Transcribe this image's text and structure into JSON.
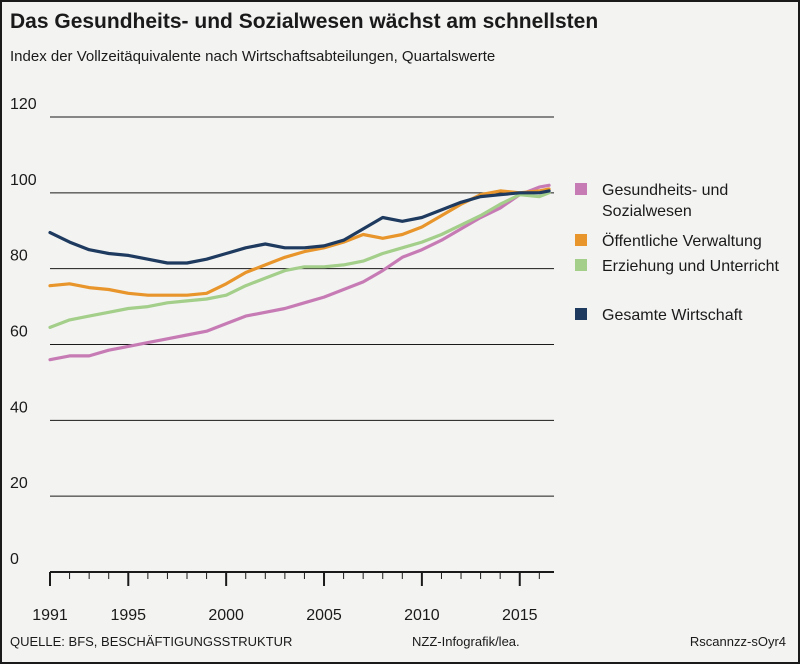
{
  "header": {
    "title": "Das Gesundheits- und Sozialwesen wächst am schnellsten",
    "subtitle": "Index der Vollzeitäquivalente nach Wirtschaftsabteilungen, Quartalswerte"
  },
  "footer": {
    "source": "QUELLE: BFS, BESCHÄFTIGUNGSSTRUKTUR",
    "credit": "NZZ-Infografik/lea.",
    "id": "Rscannzz-sOyr4"
  },
  "chart_data": {
    "type": "line",
    "title": "Das Gesundheits- und Sozialwesen wächst am schnellsten",
    "subtitle": "Index der Vollzeitäquivalente nach Wirtschaftsabteilungen, Quartalswerte",
    "xlabel": "",
    "ylabel": "",
    "xlim": [
      1991,
      2016.75
    ],
    "ylim": [
      0,
      120
    ],
    "x_ticks": [
      1991,
      1995,
      2000,
      2005,
      2010,
      2015
    ],
    "y_ticks": [
      0,
      20,
      40,
      60,
      80,
      100,
      120
    ],
    "grid": "horizontal",
    "legend_position": "right",
    "series": [
      {
        "name": "Gesundheits- und Sozialwesen",
        "color": "#c77bb5",
        "x": [
          1991,
          1992,
          1993,
          1994,
          1995,
          1996,
          1997,
          1998,
          1999,
          2000,
          2001,
          2002,
          2003,
          2004,
          2005,
          2006,
          2007,
          2008,
          2009,
          2010,
          2011,
          2012,
          2013,
          2014,
          2015,
          2016,
          2016.5
        ],
        "values": [
          56,
          57,
          57,
          58.5,
          59.5,
          60.5,
          61.5,
          62.5,
          63.5,
          65.5,
          67.5,
          68.5,
          69.5,
          71,
          72.5,
          74.5,
          76.5,
          79.5,
          83,
          85,
          87.5,
          90.5,
          93.5,
          96,
          99.5,
          101.5,
          102
        ]
      },
      {
        "name": "Öffentliche Verwaltung",
        "color": "#e8952b",
        "x": [
          1991,
          1992,
          1993,
          1994,
          1995,
          1996,
          1997,
          1998,
          1999,
          2000,
          2001,
          2002,
          2003,
          2004,
          2005,
          2006,
          2007,
          2008,
          2009,
          2010,
          2011,
          2012,
          2013,
          2014,
          2015,
          2016,
          2016.5
        ],
        "values": [
          75.5,
          76,
          75,
          74.5,
          73.5,
          73,
          73,
          73,
          73.5,
          76,
          79,
          81,
          83,
          84.5,
          85.5,
          87,
          89,
          88,
          89,
          91,
          94,
          97,
          99.5,
          100.5,
          100,
          100.5,
          101
        ]
      },
      {
        "name": "Erziehung und Unterricht",
        "color": "#a3cf8a",
        "x": [
          1991,
          1992,
          1993,
          1994,
          1995,
          1996,
          1997,
          1998,
          1999,
          2000,
          2001,
          2002,
          2003,
          2004,
          2005,
          2006,
          2007,
          2008,
          2009,
          2010,
          2011,
          2012,
          2013,
          2014,
          2015,
          2016,
          2016.5
        ],
        "values": [
          64.5,
          66.5,
          67.5,
          68.5,
          69.5,
          70,
          71,
          71.5,
          72,
          73,
          75.5,
          77.5,
          79.5,
          80.5,
          80.5,
          81,
          82,
          84,
          85.5,
          87,
          89,
          91.5,
          94,
          97,
          99.5,
          99,
          100
        ]
      },
      {
        "name": "Gesamte Wirtschaft",
        "color": "#1e3a5f",
        "x": [
          1991,
          1992,
          1993,
          1994,
          1995,
          1996,
          1997,
          1998,
          1999,
          2000,
          2001,
          2002,
          2003,
          2004,
          2005,
          2006,
          2007,
          2008,
          2009,
          2010,
          2011,
          2012,
          2013,
          2014,
          2015,
          2016,
          2016.5
        ],
        "values": [
          89.5,
          87,
          85,
          84,
          83.5,
          82.5,
          81.5,
          81.5,
          82.5,
          84,
          85.5,
          86.5,
          85.5,
          85.5,
          86,
          87.5,
          90.5,
          93.5,
          92.5,
          93.5,
          95.5,
          97.5,
          99,
          99.5,
          100,
          100,
          100.5
        ]
      }
    ]
  }
}
